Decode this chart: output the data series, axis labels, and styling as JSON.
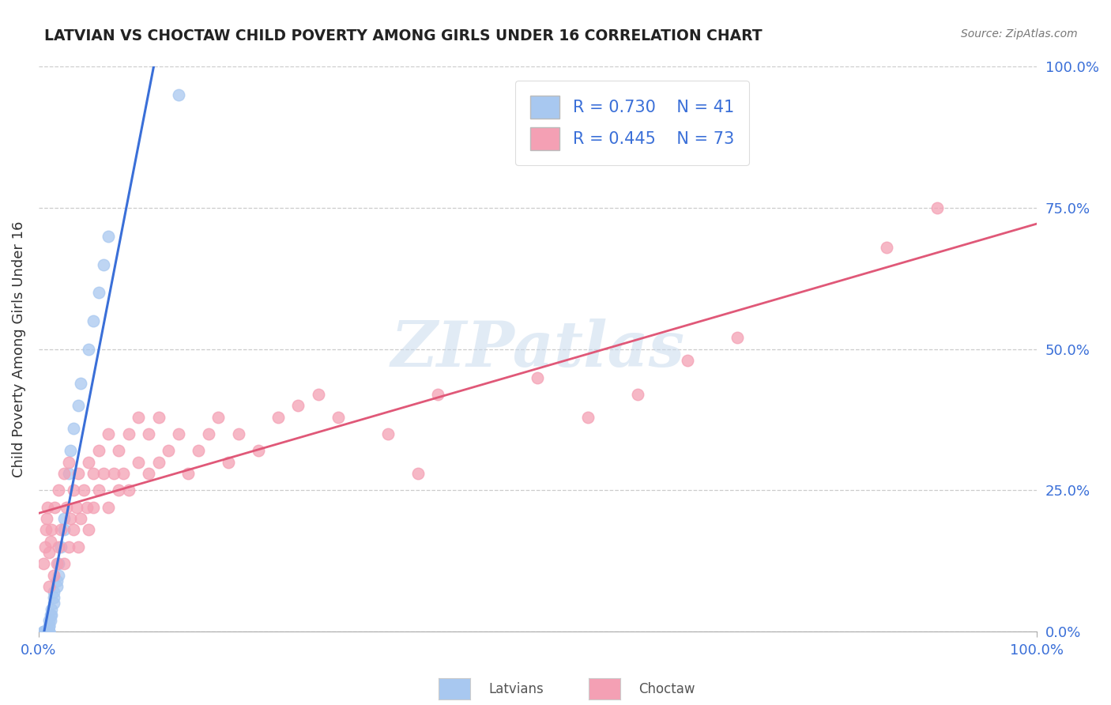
{
  "title": "LATVIAN VS CHOCTAW CHILD POVERTY AMONG GIRLS UNDER 16 CORRELATION CHART",
  "source": "Source: ZipAtlas.com",
  "ylabel": "Child Poverty Among Girls Under 16",
  "xlim": [
    0.0,
    1.0
  ],
  "ylim": [
    0.0,
    1.0
  ],
  "xtick_positions": [
    0.0,
    1.0
  ],
  "xtick_labels": [
    "0.0%",
    "100.0%"
  ],
  "ytick_positions": [
    0.0,
    0.25,
    0.5,
    0.75,
    1.0
  ],
  "ytick_labels_right": [
    "0.0%",
    "25.0%",
    "50.0%",
    "75.0%",
    "100.0%"
  ],
  "watermark": "ZIPatlas",
  "latvian_color": "#a8c8f0",
  "choctaw_color": "#f4a0b4",
  "latvian_line_color": "#3a6fd8",
  "choctaw_line_color": "#e05878",
  "latvian_R": 0.73,
  "latvian_N": 41,
  "choctaw_R": 0.445,
  "choctaw_N": 73,
  "legend_label_latvian": "Latvians",
  "legend_label_choctaw": "Choctaw",
  "latvian_x": [
    0.005,
    0.005,
    0.006,
    0.006,
    0.007,
    0.007,
    0.008,
    0.008,
    0.009,
    0.009,
    0.01,
    0.01,
    0.01,
    0.01,
    0.01,
    0.01,
    0.012,
    0.012,
    0.013,
    0.013,
    0.015,
    0.015,
    0.015,
    0.018,
    0.018,
    0.02,
    0.02,
    0.022,
    0.025,
    0.025,
    0.03,
    0.032,
    0.035,
    0.04,
    0.042,
    0.05,
    0.055,
    0.06,
    0.065,
    0.07,
    0.14
  ],
  "latvian_y": [
    0.0,
    0.0,
    0.0,
    0.0,
    0.0,
    0.0,
    0.0,
    0.0,
    0.0,
    0.0,
    0.0,
    0.0,
    0.0,
    0.01,
    0.01,
    0.02,
    0.02,
    0.03,
    0.03,
    0.04,
    0.05,
    0.06,
    0.07,
    0.08,
    0.09,
    0.1,
    0.12,
    0.15,
    0.18,
    0.2,
    0.28,
    0.32,
    0.36,
    0.4,
    0.44,
    0.5,
    0.55,
    0.6,
    0.65,
    0.7,
    0.95
  ],
  "choctaw_x": [
    0.005,
    0.006,
    0.007,
    0.008,
    0.009,
    0.01,
    0.01,
    0.012,
    0.013,
    0.015,
    0.016,
    0.018,
    0.02,
    0.02,
    0.022,
    0.025,
    0.025,
    0.028,
    0.03,
    0.03,
    0.032,
    0.035,
    0.035,
    0.038,
    0.04,
    0.04,
    0.042,
    0.045,
    0.048,
    0.05,
    0.05,
    0.055,
    0.055,
    0.06,
    0.06,
    0.065,
    0.07,
    0.07,
    0.075,
    0.08,
    0.08,
    0.085,
    0.09,
    0.09,
    0.1,
    0.1,
    0.11,
    0.11,
    0.12,
    0.12,
    0.13,
    0.14,
    0.15,
    0.16,
    0.17,
    0.18,
    0.19,
    0.2,
    0.22,
    0.24,
    0.26,
    0.28,
    0.3,
    0.35,
    0.38,
    0.4,
    0.5,
    0.55,
    0.6,
    0.65,
    0.7,
    0.85,
    0.9
  ],
  "choctaw_y": [
    0.12,
    0.15,
    0.18,
    0.2,
    0.22,
    0.08,
    0.14,
    0.16,
    0.18,
    0.1,
    0.22,
    0.12,
    0.15,
    0.25,
    0.18,
    0.12,
    0.28,
    0.22,
    0.15,
    0.3,
    0.2,
    0.18,
    0.25,
    0.22,
    0.15,
    0.28,
    0.2,
    0.25,
    0.22,
    0.18,
    0.3,
    0.22,
    0.28,
    0.25,
    0.32,
    0.28,
    0.22,
    0.35,
    0.28,
    0.25,
    0.32,
    0.28,
    0.25,
    0.35,
    0.3,
    0.38,
    0.28,
    0.35,
    0.3,
    0.38,
    0.32,
    0.35,
    0.28,
    0.32,
    0.35,
    0.38,
    0.3,
    0.35,
    0.32,
    0.38,
    0.4,
    0.42,
    0.38,
    0.35,
    0.28,
    0.42,
    0.45,
    0.38,
    0.42,
    0.48,
    0.52,
    0.68,
    0.75
  ]
}
